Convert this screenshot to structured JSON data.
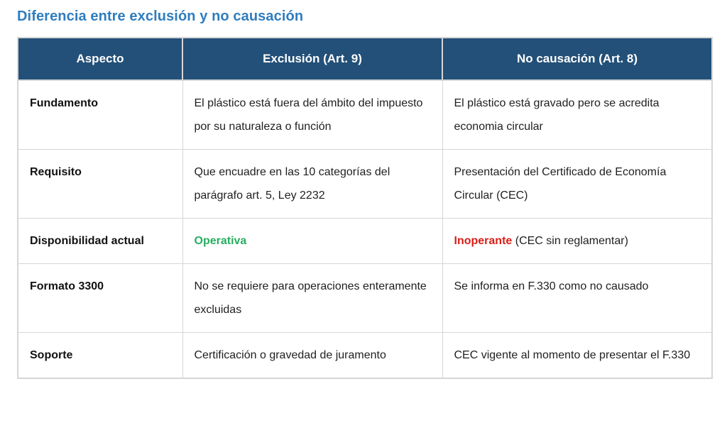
{
  "page_title": "Diferencia entre exclusión y no causación",
  "colors": {
    "title_blue": "#2e7dbe",
    "header_bg": "#235078",
    "header_text": "#ffffff",
    "status_green": "#27ae60",
    "status_red": "#d91e18",
    "border_gray": "#d6d6d6"
  },
  "table": {
    "headers": {
      "aspect": "Aspecto",
      "exclusion": "Exclusión (Art. 9)",
      "no_causacion": "No causación (Art. 8)"
    },
    "rows": [
      {
        "aspect": "Fundamento",
        "exclusion": "El plástico está fuera del ámbito del impuesto por su naturaleza o función",
        "no_causacion": "El plástico está gravado pero se acredita economia circular"
      },
      {
        "aspect": "Requisito",
        "exclusion": "Que encuadre en las 10 categorías del parágrafo art. 5, Ley 2232",
        "no_causacion": "Presentación del Certificado de Economía Circular (CEC)"
      },
      {
        "aspect": "Disponibilidad actual",
        "exclusion_status": "Operativa",
        "no_causacion_status": "Inoperante",
        "no_causacion_note": " (CEC sin reglamentar)"
      },
      {
        "aspect": "Formato 3300",
        "exclusion": "No se requiere para operaciones enteramente excluidas",
        "no_causacion": "Se informa en F.330 como no causado"
      },
      {
        "aspect": "Soporte",
        "exclusion": "Certificación o gravedad de juramento",
        "no_causacion": "CEC vigente al momento de presentar el F.330"
      }
    ]
  }
}
